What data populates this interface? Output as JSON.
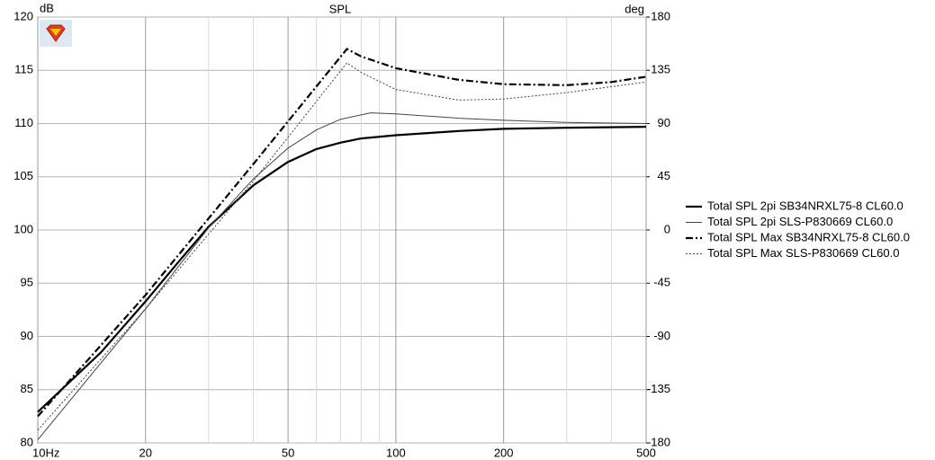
{
  "chart_data": {
    "type": "line",
    "title": "SPL",
    "ylabel": "dB",
    "y2label": "deg",
    "xscale": "log",
    "xlim": [
      10,
      500
    ],
    "ylim": [
      80,
      120
    ],
    "y2lim": [
      -180,
      180
    ],
    "xticks": [
      {
        "value": 10,
        "label": "10Hz"
      },
      20,
      50,
      100,
      200,
      500
    ],
    "xminor": [
      30,
      40,
      60,
      70,
      80,
      90,
      300,
      400
    ],
    "yticks": [
      80,
      85,
      90,
      95,
      100,
      105,
      110,
      115,
      120
    ],
    "y2ticks": [
      -180,
      -135,
      -90,
      -45,
      0,
      45,
      90,
      135,
      180
    ],
    "grid": true,
    "legend": "right",
    "series": [
      {
        "name": "Total SPL 2pi SB34NRXL75-8 CL60.0",
        "color": "#000000",
        "width": 2.2,
        "dash": "none",
        "x": [
          10,
          15,
          20,
          25,
          30,
          40,
          50,
          60,
          70,
          80,
          100,
          150,
          200,
          300,
          500
        ],
        "values": [
          82.9,
          88.5,
          93.3,
          97.2,
          100.3,
          104.2,
          106.4,
          107.6,
          108.2,
          108.6,
          108.9,
          109.3,
          109.5,
          109.6,
          109.7
        ]
      },
      {
        "name": "Total SPL 2pi SLS-P830669 CL60.0",
        "color": "#444444",
        "width": 1,
        "dash": "none",
        "x": [
          10,
          15,
          20,
          25,
          30,
          40,
          50,
          60,
          70,
          85,
          100,
          150,
          200,
          300,
          500
        ],
        "values": [
          80.3,
          87.5,
          92.6,
          96.8,
          100.2,
          104.8,
          107.7,
          109.4,
          110.4,
          111.0,
          110.9,
          110.5,
          110.3,
          110.1,
          110.0
        ]
      },
      {
        "name": "Total SPL Max SB34NRXL75-8 CL60.0",
        "color": "#000000",
        "width": 2.2,
        "dash": "8 3 2 3",
        "x": [
          10,
          20,
          40,
          73,
          80,
          100,
          150,
          200,
          300,
          400,
          500
        ],
        "values": [
          82.5,
          93.9,
          106.2,
          117.0,
          116.3,
          115.2,
          114.1,
          113.7,
          113.6,
          113.9,
          114.4
        ]
      },
      {
        "name": "Total SPL Max SLS-P830669 CL60.0",
        "color": "#444444",
        "width": 1,
        "dash": "2 2",
        "x": [
          10,
          20,
          40,
          73,
          80,
          100,
          150,
          200,
          300,
          500
        ],
        "values": [
          81.2,
          92.6,
          104.6,
          115.7,
          114.8,
          113.2,
          112.2,
          112.3,
          112.9,
          113.9
        ]
      }
    ]
  }
}
